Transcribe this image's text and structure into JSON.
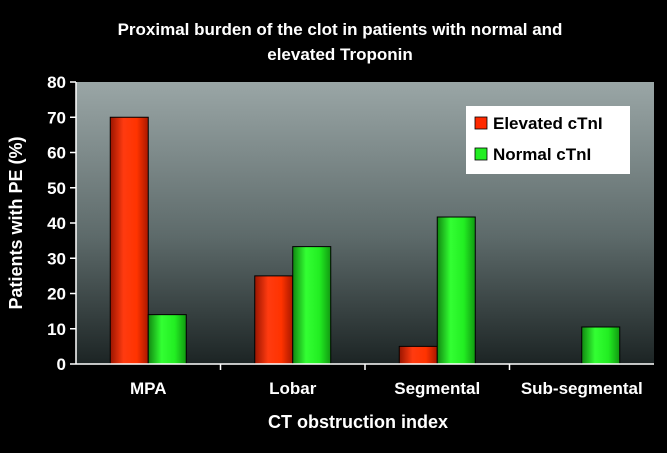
{
  "chart_data": {
    "type": "bar",
    "title_lines": [
      "Proximal burden of the clot in patients with normal and",
      "elevated Troponin"
    ],
    "xlabel": "CT obstruction index",
    "ylabel": "Patients with PE (%)",
    "ylim": [
      0,
      80
    ],
    "yticks": [
      "0",
      "10",
      "20",
      "30",
      "40",
      "50",
      "60",
      "70",
      "80"
    ],
    "categories": [
      "MPA",
      "Lobar",
      "Segmental",
      "Sub-segmental"
    ],
    "series": [
      {
        "name": "Elevated cTnI",
        "values": [
          70,
          25,
          5,
          0
        ],
        "color": "#ff2a00"
      },
      {
        "name": "Normal cTnI",
        "values": [
          14,
          33.3,
          41.7,
          10.5
        ],
        "color": "#22ee22"
      }
    ],
    "legend_position": "top-right",
    "grid": false
  }
}
